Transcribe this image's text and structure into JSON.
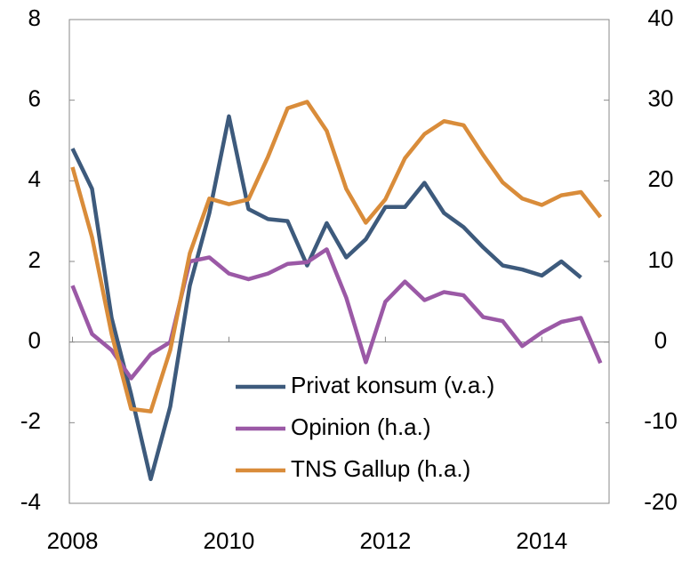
{
  "chart_data": {
    "type": "line",
    "x": [
      2008,
      2008.25,
      2008.5,
      2008.75,
      2009,
      2009.25,
      2009.5,
      2009.75,
      2010,
      2010.25,
      2010.5,
      2010.75,
      2011,
      2011.25,
      2011.5,
      2011.75,
      2012,
      2012.25,
      2012.5,
      2012.75,
      2013,
      2013.25,
      2013.5,
      2013.75,
      2014,
      2014.25,
      2014.5,
      2014.75
    ],
    "xlim": [
      2007.96,
      2014.86
    ],
    "xticks": [
      2008,
      2010,
      2012,
      2014
    ],
    "ylim": [
      -4,
      8
    ],
    "yticks": [
      -4,
      -2,
      0,
      2,
      4,
      6,
      8
    ],
    "y2lim": [
      -20,
      40
    ],
    "y2ticks": [
      -20,
      -10,
      0,
      10,
      20,
      30,
      40
    ],
    "legend": "lower right",
    "series": [
      {
        "name": "Privat konsum (v.a.)",
        "color": "#3d5a7c",
        "axis": "y",
        "values": [
          4.8,
          3.8,
          0.6,
          -1.3,
          -3.4,
          -1.6,
          1.4,
          3.2,
          5.6,
          3.3,
          3.05,
          3.0,
          1.9,
          2.95,
          2.1,
          2.55,
          3.35,
          3.35,
          3.95,
          3.2,
          2.85,
          2.35,
          1.9,
          1.8,
          1.65,
          2.0,
          1.6,
          null
        ]
      },
      {
        "name": "Opinion (h.a.)",
        "color": "#9b59a6",
        "axis": "y2",
        "values": [
          7,
          1,
          -1,
          -4.5,
          -1.5,
          0,
          10,
          10.5,
          8.5,
          7.8,
          8.5,
          9.7,
          9.9,
          11.5,
          5.5,
          -2.5,
          5,
          7.5,
          5.2,
          6.2,
          5.8,
          3.1,
          2.6,
          -0.5,
          1.2,
          2.5,
          3,
          -2.6
        ]
      },
      {
        "name": "TNS Gallup (h.a.)",
        "color": "#d98c3a",
        "axis": "y2",
        "values": [
          21.7,
          13,
          1,
          -8.3,
          -8.6,
          -1,
          11,
          17.8,
          17.1,
          17.7,
          23,
          29,
          29.8,
          26.2,
          19,
          14.8,
          17.7,
          22.8,
          25.8,
          27.4,
          26.9,
          23.2,
          19.8,
          17.8,
          17,
          18.2,
          18.6,
          15.5
        ]
      }
    ]
  }
}
